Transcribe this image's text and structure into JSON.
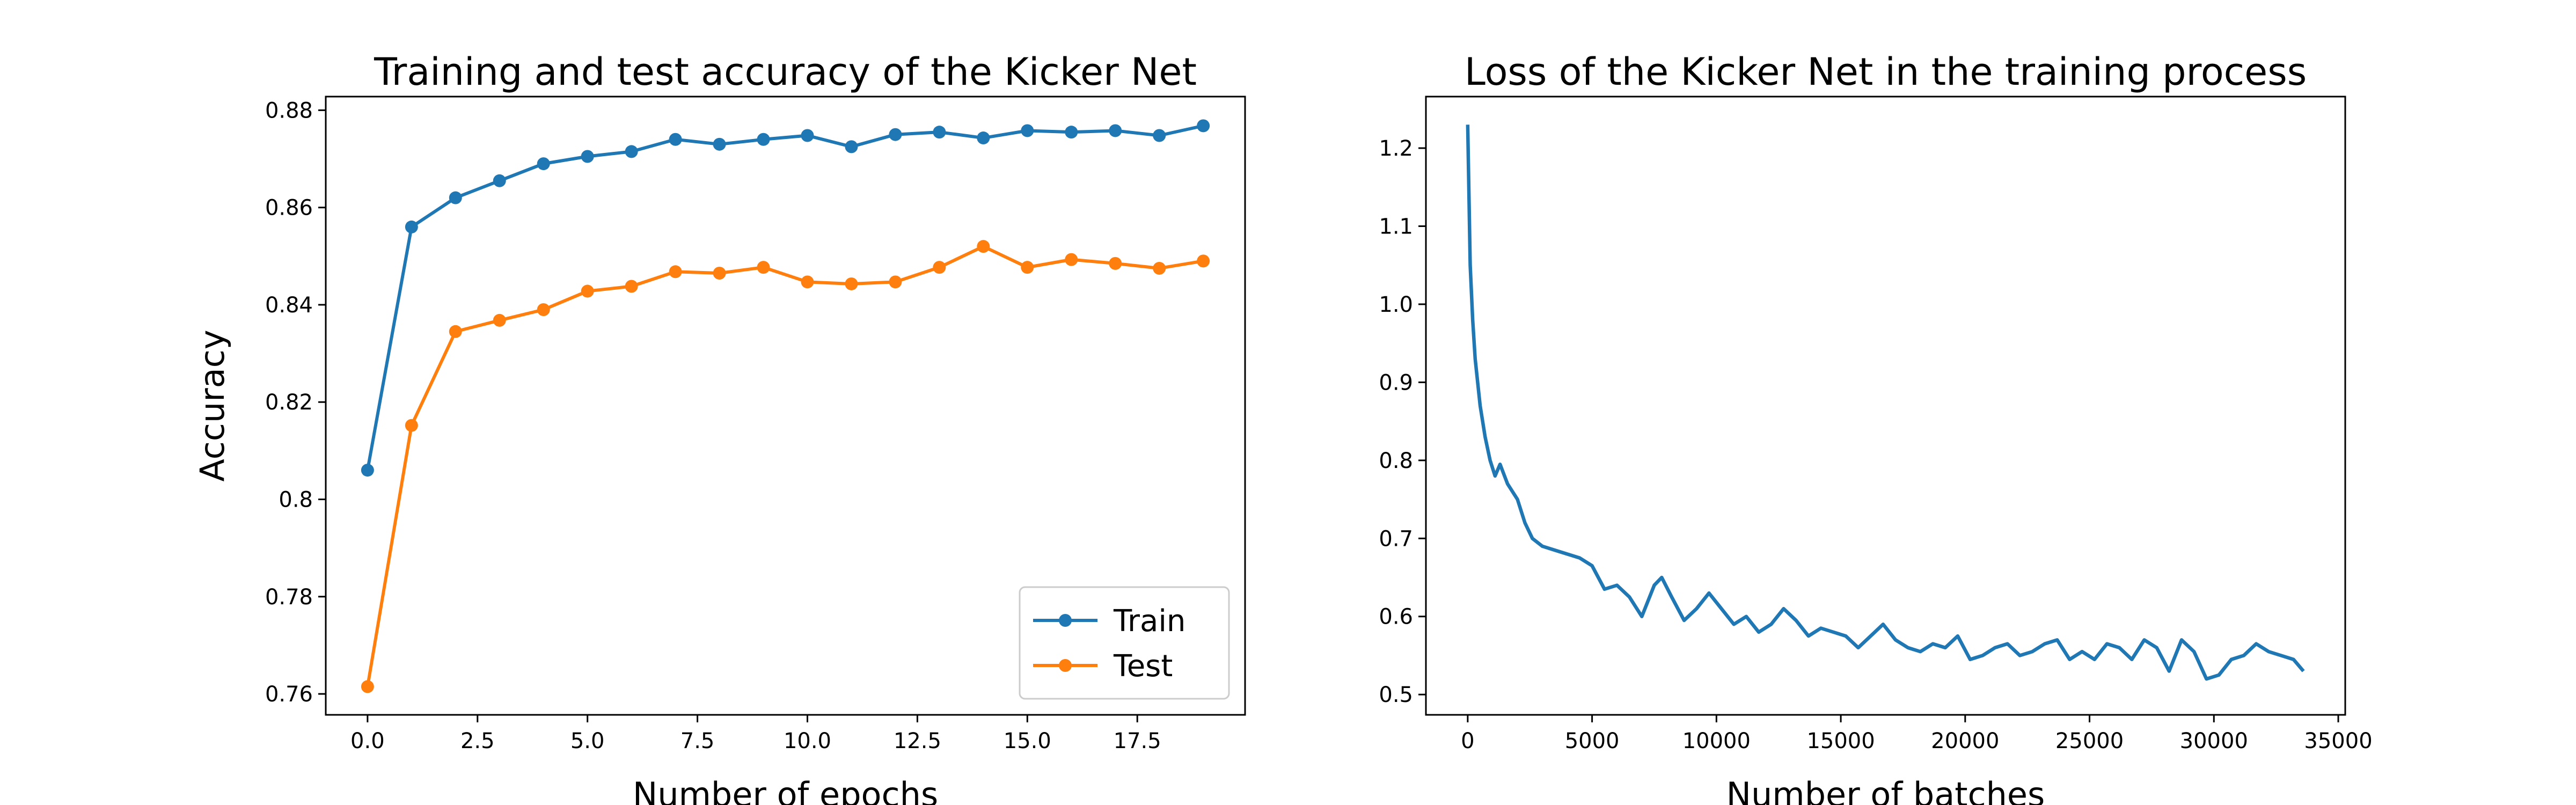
{
  "chart_data": [
    {
      "type": "line",
      "title": "Training and test accuracy of the Kicker Net",
      "xlabel": "Number of epochs",
      "ylabel": "Accuracy",
      "x": [
        0,
        1,
        2,
        3,
        4,
        5,
        6,
        7,
        8,
        9,
        10,
        11,
        12,
        13,
        14,
        15,
        16,
        17,
        18,
        19
      ],
      "series": [
        {
          "name": "Train",
          "color": "#1f77b4",
          "values": [
            0.806,
            0.856,
            0.862,
            0.8655,
            0.869,
            0.8705,
            0.8715,
            0.874,
            0.873,
            0.874,
            0.8748,
            0.8725,
            0.875,
            0.8755,
            0.8743,
            0.8758,
            0.8755,
            0.8758,
            0.8748,
            0.8768
          ]
        },
        {
          "name": "Test",
          "color": "#ff7f0e",
          "values": [
            0.7615,
            0.8152,
            0.8345,
            0.8368,
            0.839,
            0.8428,
            0.8438,
            0.8468,
            0.8465,
            0.8477,
            0.8447,
            0.8443,
            0.8447,
            0.8477,
            0.852,
            0.8477,
            0.8493,
            0.8485,
            0.8475,
            0.849
          ]
        }
      ],
      "markers": true,
      "legend": "lower right",
      "xlim": [
        -0.95,
        19.95
      ],
      "ylim": [
        0.7557,
        0.8828
      ],
      "xticks": [
        {
          "value": 0,
          "label": "0.0"
        },
        2.5,
        {
          "value": 5,
          "label": "5.0"
        },
        7.5,
        {
          "value": 10,
          "label": "10.0"
        },
        12.5,
        {
          "value": 15,
          "label": "15.0"
        },
        17.5
      ],
      "yticks": [
        0.76,
        0.78,
        0.8,
        0.82,
        0.84,
        0.86,
        0.88
      ]
    },
    {
      "type": "line",
      "title": "Loss of the Kicker Net in the training process",
      "xlabel": "Number of batches",
      "x": [
        0,
        100,
        200,
        300,
        500,
        700,
        900,
        1100,
        1300,
        1600,
        2000,
        2300,
        2600,
        3000,
        3500,
        4000,
        4500,
        5000,
        5500,
        6000,
        6500,
        7000,
        7500,
        7800,
        8200,
        8700,
        9200,
        9700,
        10200,
        10700,
        11200,
        11700,
        12200,
        12700,
        13200,
        13700,
        14200,
        14700,
        15200,
        15700,
        16200,
        16700,
        17200,
        17700,
        18200,
        18700,
        19200,
        19700,
        20200,
        20700,
        21200,
        21700,
        22200,
        22700,
        23200,
        23700,
        24200,
        24700,
        25200,
        25700,
        26200,
        26700,
        27200,
        27700,
        28200,
        28700,
        29200,
        29700,
        30200,
        30700,
        31200,
        31700,
        32200,
        32700,
        33200,
        33600
      ],
      "series": [
        {
          "color": "#1f77b4",
          "values": [
            1.23,
            1.05,
            0.98,
            0.93,
            0.87,
            0.83,
            0.8,
            0.78,
            0.795,
            0.77,
            0.75,
            0.72,
            0.7,
            0.69,
            0.685,
            0.68,
            0.675,
            0.665,
            0.635,
            0.64,
            0.625,
            0.6,
            0.64,
            0.65,
            0.625,
            0.595,
            0.61,
            0.63,
            0.61,
            0.59,
            0.6,
            0.58,
            0.59,
            0.61,
            0.595,
            0.575,
            0.585,
            0.58,
            0.575,
            0.56,
            0.575,
            0.59,
            0.57,
            0.56,
            0.555,
            0.565,
            0.56,
            0.575,
            0.545,
            0.55,
            0.56,
            0.565,
            0.55,
            0.555,
            0.565,
            0.57,
            0.545,
            0.555,
            0.545,
            0.565,
            0.56,
            0.545,
            0.57,
            0.56,
            0.53,
            0.57,
            0.555,
            0.52,
            0.525,
            0.545,
            0.55,
            0.565,
            0.555,
            0.55,
            0.545,
            0.53
          ]
        }
      ],
      "markers": false,
      "xlim": [
        -1680,
        35280
      ],
      "ylim": [
        0.474,
        1.266
      ],
      "xticks": [
        0,
        5000,
        10000,
        15000,
        20000,
        25000,
        30000,
        35000
      ],
      "yticks": [
        0.5,
        0.6,
        0.7,
        0.8,
        0.9,
        {
          "value": 1,
          "label": "1.0"
        },
        1.1,
        1.2
      ]
    }
  ]
}
